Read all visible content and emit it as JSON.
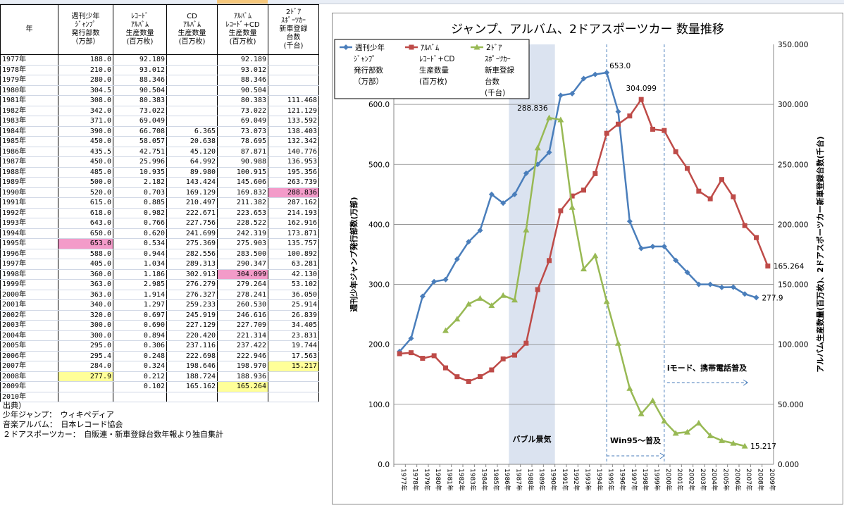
{
  "table": {
    "headers": [
      "年",
      "週刊少年\nｼﾞｬﾝﾌﾟ\n発行部数\n（万部）",
      "ﾚｺｰﾄﾞ\nｱﾙﾊﾞﾑ\n生産数量\n(百万枚)",
      "CD\nｱﾙﾊﾞﾑ\n生産数量\n(百万枚)",
      "ｱﾙﾊﾞﾑ\nﾚｺｰﾄﾞ+CD\n生産数量\n(百万枚)",
      "2ﾄﾞｱ\nｽﾎﾟｰﾂｶｰ\n新車登録\n台数\n(千台)"
    ],
    "rows": [
      [
        "1977年",
        "188.0",
        "92.189",
        "",
        "92.189",
        ""
      ],
      [
        "1978年",
        "210.0",
        "93.012",
        "",
        "93.012",
        ""
      ],
      [
        "1979年",
        "280.0",
        "88.346",
        "",
        "88.346",
        ""
      ],
      [
        "1980年",
        "304.5",
        "90.504",
        "",
        "90.504",
        ""
      ],
      [
        "1981年",
        "308.0",
        "80.383",
        "",
        "80.383",
        "111.468"
      ],
      [
        "1982年",
        "342.0",
        "73.022",
        "",
        "73.022",
        "121.129"
      ],
      [
        "1983年",
        "371.0",
        "69.049",
        "",
        "69.049",
        "133.592"
      ],
      [
        "1984年",
        "390.0",
        "66.708",
        "6.365",
        "73.073",
        "138.403"
      ],
      [
        "1985年",
        "450.0",
        "58.057",
        "20.638",
        "78.695",
        "132.342"
      ],
      [
        "1986年",
        "435.5",
        "42.751",
        "45.120",
        "87.871",
        "140.776"
      ],
      [
        "1987年",
        "450.0",
        "25.996",
        "64.992",
        "90.988",
        "136.953"
      ],
      [
        "1988年",
        "485.0",
        "10.935",
        "89.980",
        "100.915",
        "195.356"
      ],
      [
        "1989年",
        "500.0",
        "2.182",
        "143.424",
        "145.606",
        "263.739"
      ],
      [
        "1990年",
        "520.0",
        "0.703",
        "169.129",
        "169.832",
        "288.836"
      ],
      [
        "1991年",
        "615.0",
        "0.885",
        "210.497",
        "211.382",
        "287.162"
      ],
      [
        "1992年",
        "618.0",
        "0.982",
        "222.671",
        "223.653",
        "214.193"
      ],
      [
        "1993年",
        "643.0",
        "0.766",
        "227.756",
        "228.522",
        "162.916"
      ],
      [
        "1994年",
        "650.0",
        "0.620",
        "241.699",
        "242.319",
        "173.871"
      ],
      [
        "1995年",
        "653.0",
        "0.534",
        "275.369",
        "275.903",
        "135.757"
      ],
      [
        "1996年",
        "588.0",
        "0.944",
        "282.556",
        "283.500",
        "100.892"
      ],
      [
        "1997年",
        "405.0",
        "1.034",
        "289.313",
        "290.347",
        "63.281"
      ],
      [
        "1998年",
        "360.0",
        "1.186",
        "302.913",
        "304.099",
        "42.130"
      ],
      [
        "1999年",
        "363.0",
        "2.985",
        "276.279",
        "279.264",
        "53.102"
      ],
      [
        "2000年",
        "363.0",
        "1.914",
        "276.327",
        "278.241",
        "36.050"
      ],
      [
        "2001年",
        "340.0",
        "1.297",
        "259.233",
        "260.530",
        "25.914"
      ],
      [
        "2002年",
        "320.0",
        "0.697",
        "245.919",
        "246.616",
        "26.839"
      ],
      [
        "2003年",
        "300.0",
        "0.690",
        "227.129",
        "227.709",
        "34.405"
      ],
      [
        "2004年",
        "300.0",
        "0.894",
        "220.420",
        "221.314",
        "23.831"
      ],
      [
        "2005年",
        "295.0",
        "0.306",
        "237.116",
        "237.422",
        "19.744"
      ],
      [
        "2006年",
        "295.4",
        "0.248",
        "222.698",
        "222.946",
        "17.563"
      ],
      [
        "2007年",
        "284.0",
        "0.324",
        "198.646",
        "198.970",
        "15.217"
      ],
      [
        "2008年",
        "277.9",
        "0.212",
        "188.724",
        "188.936",
        ""
      ],
      [
        "2009年",
        "",
        "0.102",
        "165.162",
        "165.264",
        ""
      ],
      [
        "2010年",
        "",
        "",
        "",
        "",
        ""
      ]
    ]
  },
  "sources": {
    "title": "出典）",
    "line1": "少年ジャンプ：　ウィキペディア",
    "line2": "音楽アルバム：　日本レコード協会",
    "line3": "２ドアスポーツカー：　自販連・新車登録台数年報より独自集計"
  },
  "chart_data": {
    "type": "line",
    "title": "ジャンプ、アルバム、2ドアスポーツカー 数量推移",
    "x": [
      "1977年",
      "1978年",
      "1979年",
      "1980年",
      "1981年",
      "1982年",
      "1983年",
      "1984年",
      "1985年",
      "1986年",
      "1987年",
      "1988年",
      "1989年",
      "1990年",
      "1991年",
      "1992年",
      "1993年",
      "1994年",
      "1995年",
      "1996年",
      "1997年",
      "1998年",
      "1999年",
      "2000年",
      "2001年",
      "2002年",
      "2003年",
      "2004年",
      "2005年",
      "2006年",
      "2007年",
      "2008年",
      "2009年"
    ],
    "ylabel_left": "週刊少年ジャンプ発行部数(万部)",
    "ylabel_right": "アルバム生産数量(百万枚)、2ドアスポーツカー新車登録台数(千台)",
    "y_left_ticks": [
      "0.0",
      "100.0",
      "200.0",
      "300.0",
      "400.0",
      "500.0",
      "600.0"
    ],
    "y_right_ticks": [
      "0.000",
      "50.000",
      "100.000",
      "150.000",
      "200.000",
      "250.000",
      "300.000",
      "350.000"
    ],
    "ylim_left": [
      0,
      700
    ],
    "ylim_right": [
      0,
      350
    ],
    "series": [
      {
        "name": "週刊少年ジャンプ発行部数（万部）",
        "legend_lines": [
          "週刊少年",
          "ｼﾞｬﾝﾌﾟ",
          "発行部数",
          "（万部）"
        ],
        "axis": "left",
        "color": "#4a7ebb",
        "marker": "diamond",
        "values": [
          188.0,
          210.0,
          280.0,
          304.5,
          308.0,
          342.0,
          371.0,
          390.0,
          450.0,
          435.5,
          450.0,
          485.0,
          500.0,
          520.0,
          615.0,
          618.0,
          643.0,
          650.0,
          653.0,
          588.0,
          405.0,
          360.0,
          363.0,
          363.0,
          340.0,
          320.0,
          300.0,
          300.0,
          295.0,
          295.4,
          284.0,
          277.9,
          null
        ]
      },
      {
        "name": "アルバム レコード+CD 生産数量(百万枚)",
        "legend_lines": [
          "ｱﾙﾊﾞﾑ",
          "ﾚｺｰﾄﾞ+CD",
          "生産数量",
          "(百万枚)"
        ],
        "axis": "right",
        "color": "#be4b48",
        "marker": "square",
        "values": [
          92.189,
          93.012,
          88.346,
          90.504,
          80.383,
          73.022,
          69.049,
          73.073,
          78.695,
          87.871,
          90.988,
          100.915,
          145.606,
          169.832,
          211.382,
          223.653,
          228.522,
          242.319,
          275.903,
          283.5,
          290.347,
          304.099,
          279.264,
          278.241,
          260.53,
          246.616,
          227.709,
          221.314,
          237.422,
          222.946,
          198.97,
          188.936,
          165.264
        ]
      },
      {
        "name": "2ドア スポーツカー 新車登録台数(千台)",
        "legend_lines": [
          "2ﾄﾞｱ",
          "ｽﾎﾟｰﾂｶｰ",
          "新車登録",
          "台数",
          "(千台)"
        ],
        "axis": "right",
        "color": "#98b954",
        "marker": "triangle",
        "values": [
          null,
          null,
          null,
          null,
          111.468,
          121.129,
          133.592,
          138.403,
          132.342,
          140.776,
          136.953,
          195.356,
          263.739,
          288.836,
          287.162,
          214.193,
          162.916,
          173.871,
          135.757,
          100.892,
          63.281,
          42.13,
          53.102,
          36.05,
          25.914,
          26.839,
          34.405,
          23.831,
          19.744,
          17.563,
          15.217,
          null,
          null
        ]
      }
    ],
    "data_labels": [
      {
        "series": 0,
        "index": 18,
        "text": "653.0"
      },
      {
        "series": 0,
        "index": 31,
        "text": "277.9"
      },
      {
        "series": 1,
        "index": 21,
        "text": "304.099"
      },
      {
        "series": 1,
        "index": 32,
        "text": "165.264"
      },
      {
        "series": 2,
        "index": 13,
        "text": "288.836"
      },
      {
        "series": 2,
        "index": 30,
        "text": "15.217"
      }
    ],
    "annotations": {
      "bubble_label": "バブル景気",
      "win95_label": "Win95～普及",
      "imode_label": "iモード、携帯電話普及"
    },
    "legend_position": "top-left"
  }
}
